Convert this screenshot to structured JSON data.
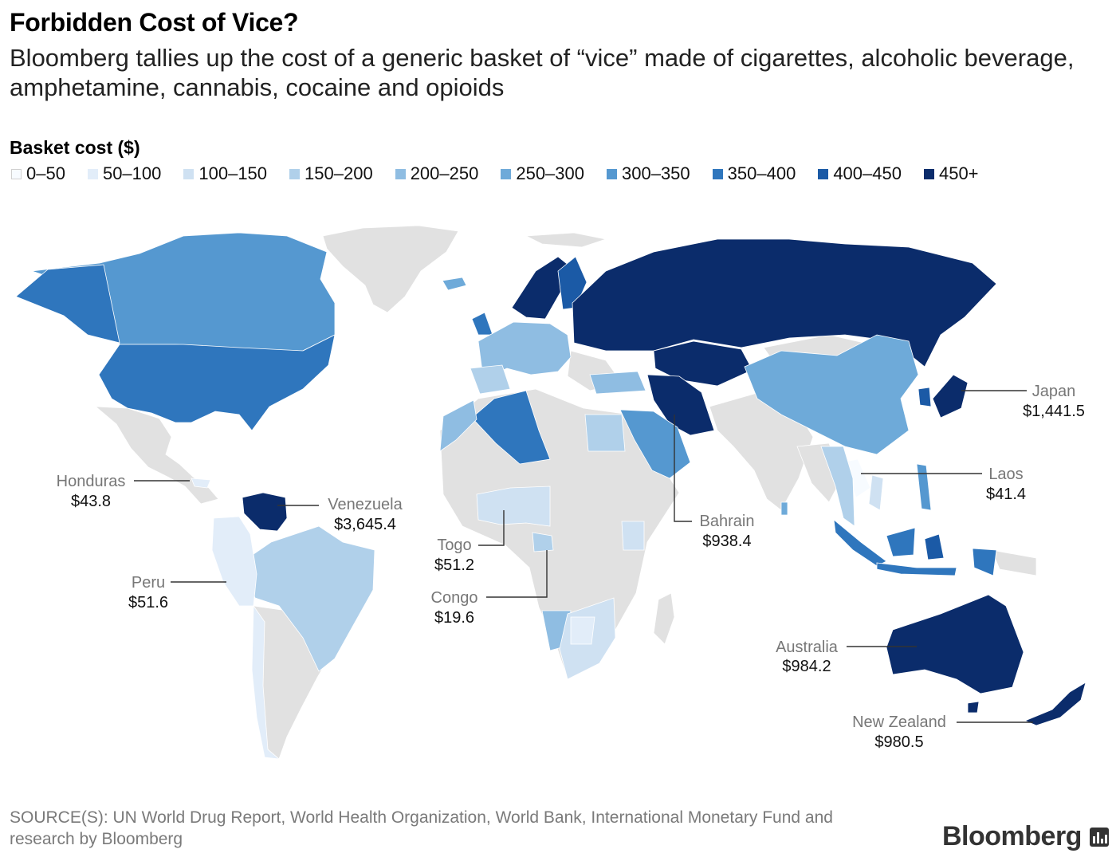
{
  "title": "Forbidden Cost of Vice?",
  "subtitle": "Bloomberg tallies up the cost of a generic basket of “vice” made of cigarettes, alcoholic beverage, amphetamine, cannabis, cocaine and opioids",
  "legend": {
    "title": "Basket cost ($)",
    "bins": [
      {
        "label": "0–50",
        "color": "#f7fbff"
      },
      {
        "label": "50–100",
        "color": "#e2edf9"
      },
      {
        "label": "100–150",
        "color": "#cfe1f2"
      },
      {
        "label": "150–200",
        "color": "#b0d0ea"
      },
      {
        "label": "200–250",
        "color": "#8fbde2"
      },
      {
        "label": "250–300",
        "color": "#6eaad9"
      },
      {
        "label": "300–350",
        "color": "#5598d0"
      },
      {
        "label": "350–400",
        "color": "#2f76bd"
      },
      {
        "label": "400–450",
        "color": "#1b5aa6"
      },
      {
        "label": "450+",
        "color": "#0b2c6b"
      }
    ]
  },
  "no_data_color": "#e1e1e1",
  "callouts": [
    {
      "name": "Japan",
      "value": "$1,441.5"
    },
    {
      "name": "Laos",
      "value": "$41.4"
    },
    {
      "name": "Bahrain",
      "value": "$938.4"
    },
    {
      "name": "Venezuela",
      "value": "$3,645.4"
    },
    {
      "name": "Honduras",
      "value": "$43.8"
    },
    {
      "name": "Togo",
      "value": "$51.2"
    },
    {
      "name": "Peru",
      "value": "$51.6"
    },
    {
      "name": "Congo",
      "value": "$19.6"
    },
    {
      "name": "Australia",
      "value": "$984.2"
    },
    {
      "name": "New Zealand",
      "value": "$980.5"
    }
  ],
  "source": "SOURCE(S): UN World Drug Report, World Health Organization, World Bank, International Monetary Fund and research by Bloomberg",
  "brand": "Bloomberg"
}
